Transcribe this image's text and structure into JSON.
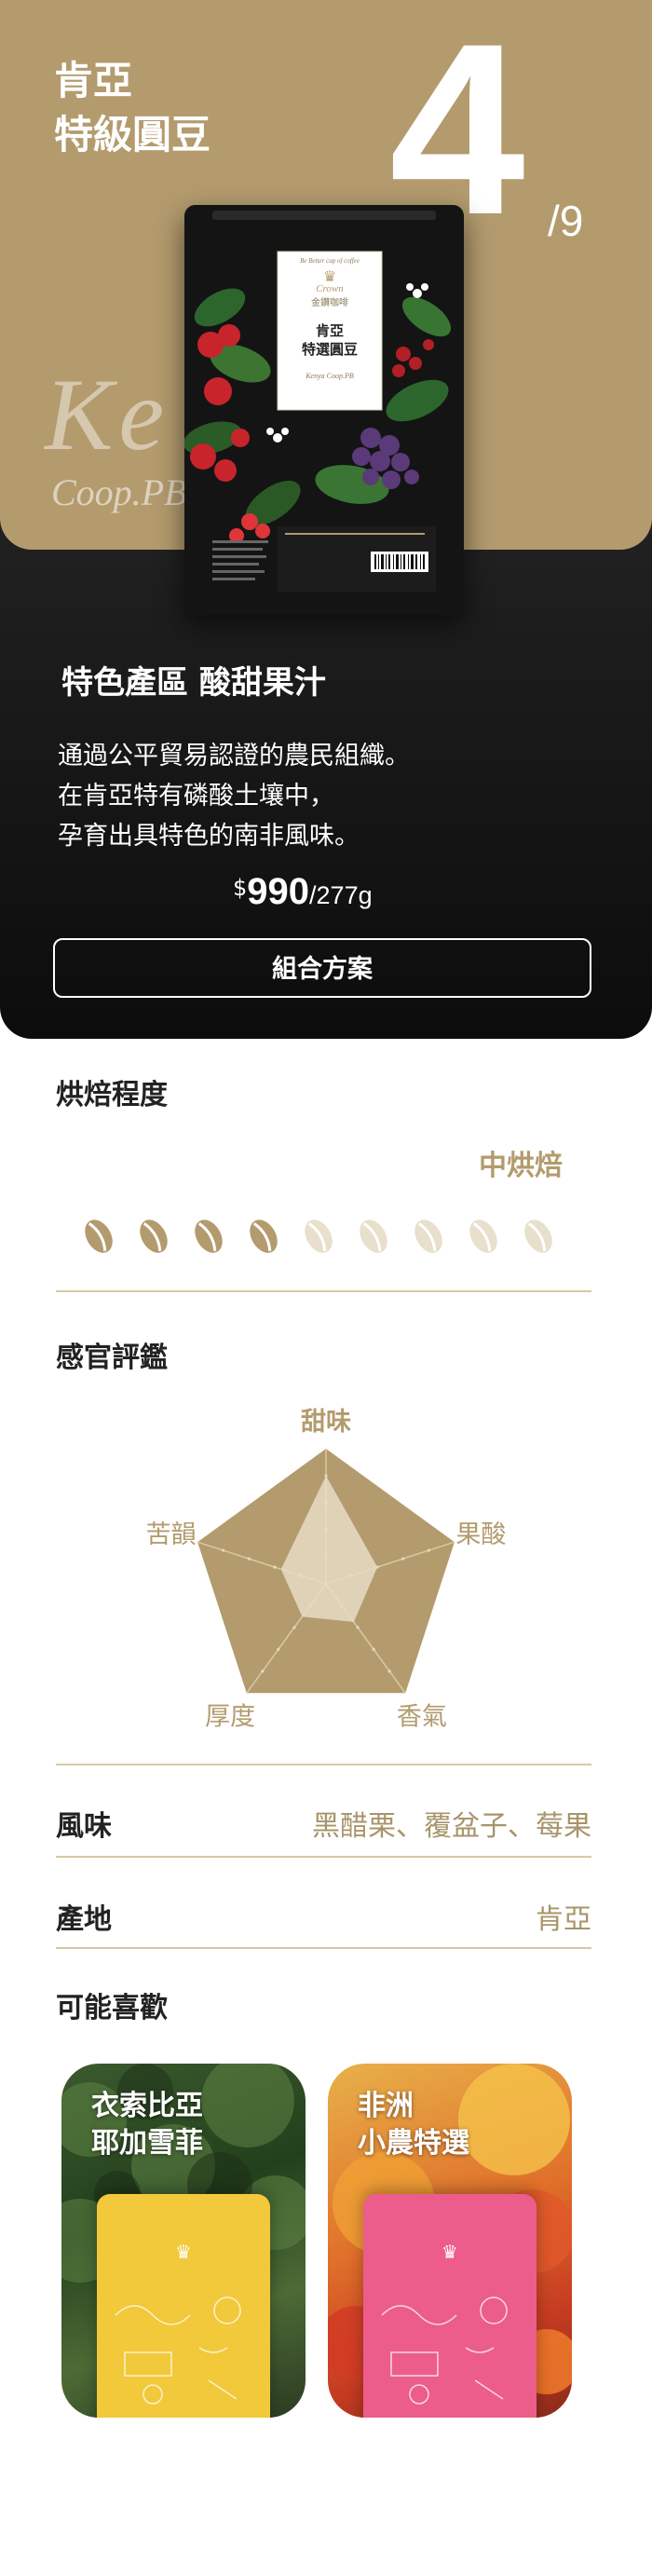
{
  "hero": {
    "title_line1": "肯亞",
    "title_line2": "特級圓豆",
    "index_current": "4",
    "index_total": "/9",
    "bg_script_main": "Ke",
    "bg_script_sub": "Coop.PB",
    "heading": "特色產區 酸甜果汁",
    "description_lines": [
      "通過公平貿易認證的農民組織。",
      "在肯亞特有磷酸土壤中，",
      "孕育出具特色的南非風味。"
    ],
    "price_currency": "$",
    "price_amount": "990",
    "price_unit": "/277g",
    "combo_button": "組合方案"
  },
  "bag": {
    "tagline": "Be Better cup of coffee",
    "brand_cn": "金鑽咖啡",
    "brand_script": "Crown",
    "name_line1": "肯亞",
    "name_line2": "特選圓豆",
    "name_en": "Kenya Coop.PB"
  },
  "roast": {
    "section_title": "烘焙程度",
    "value_label": "中烘焙",
    "level": 4,
    "max": 9
  },
  "sensory": {
    "section_title": "感官評鑑",
    "axes": [
      {
        "label": "甜味",
        "value": 0.8
      },
      {
        "label": "果酸",
        "value": 0.4
      },
      {
        "label": "香氣",
        "value": 0.35
      },
      {
        "label": "厚度",
        "value": 0.3
      },
      {
        "label": "苦韻",
        "value": 0.35
      }
    ]
  },
  "details": {
    "flavor_label": "風味",
    "flavor_value": "黑醋栗、覆盆子、莓果",
    "origin_label": "產地",
    "origin_value": "肯亞"
  },
  "recommend": {
    "section_title": "可能喜歡",
    "cards": [
      {
        "title_line1": "衣索比亞",
        "title_line2": "耶加雪菲"
      },
      {
        "title_line1": "非洲",
        "title_line2": "小農特選"
      }
    ]
  },
  "colors": {
    "gold": "#b39b6e",
    "gold_light": "#e8dfcc",
    "dark": "#141414",
    "yellow_bag": "#f1c93a",
    "pink_bag": "#ec5d8c"
  }
}
